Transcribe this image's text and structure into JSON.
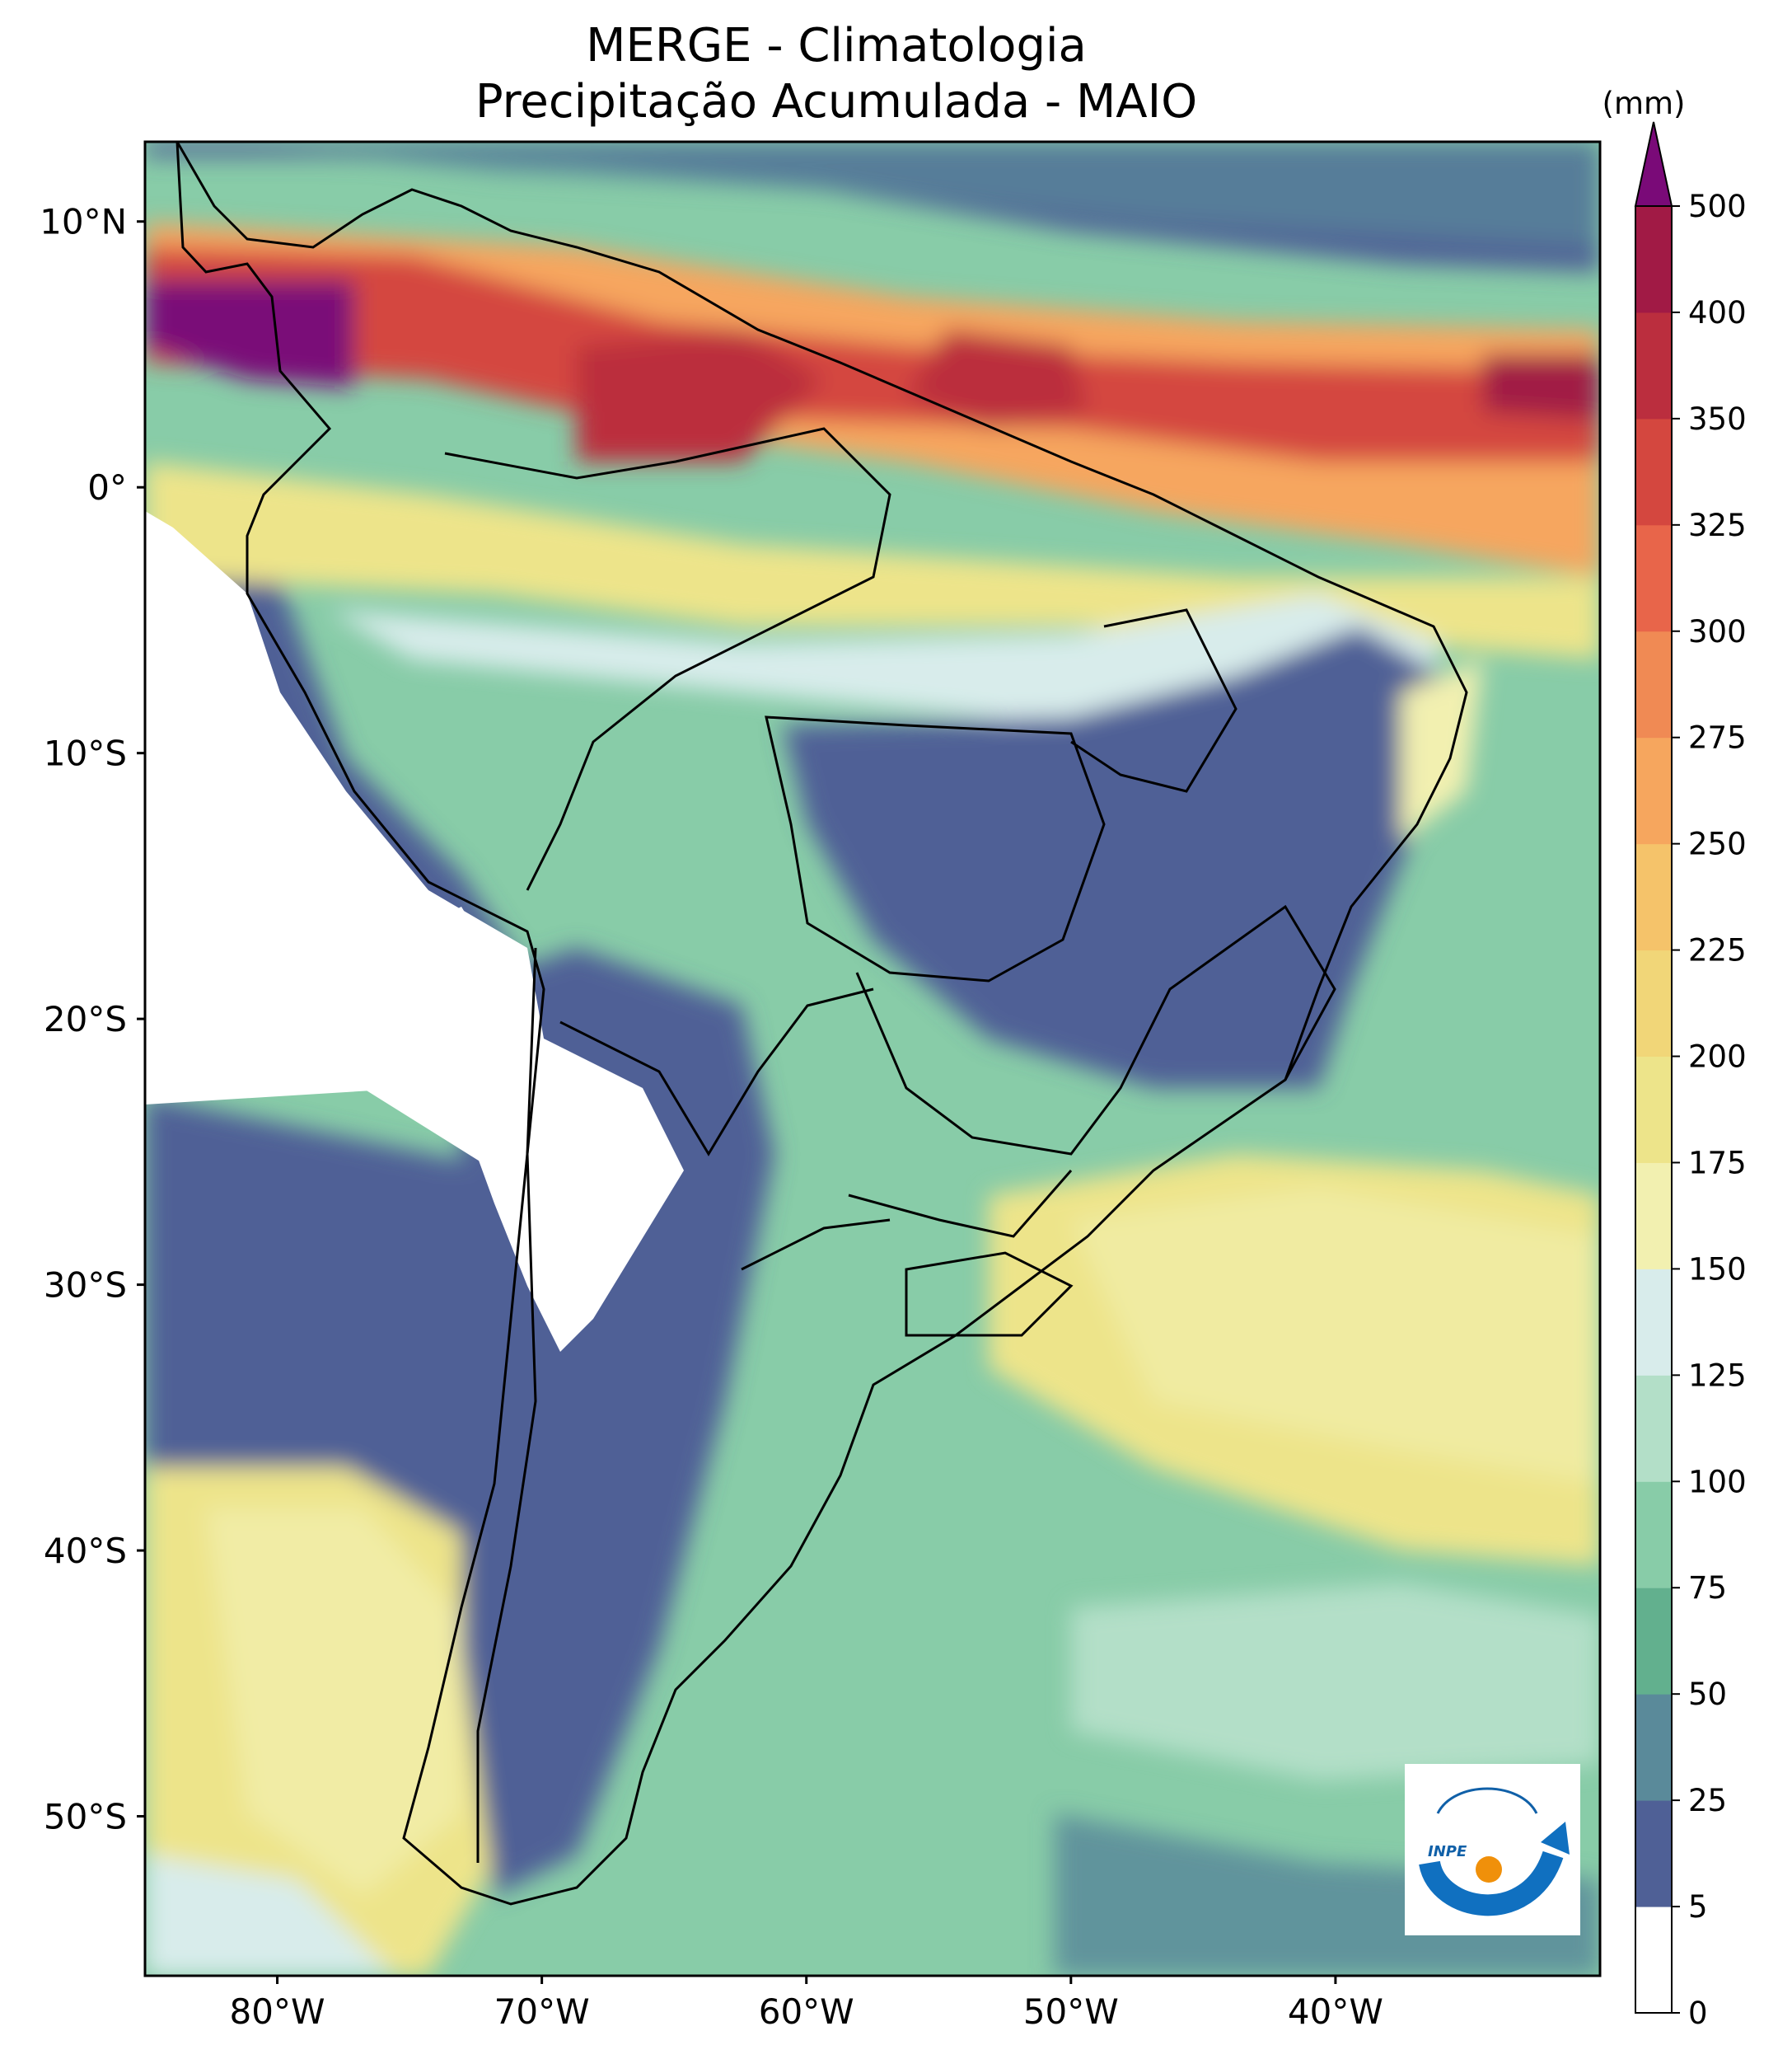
{
  "title_line1": "MERGE - Climatologia",
  "title_line2": "Precipitação Acumulada - MAIO",
  "lat_labels": [
    {
      "label": "10°N",
      "lat": 10
    },
    {
      "label": "0°",
      "lat": 0
    },
    {
      "label": "10°S",
      "lat": -10
    },
    {
      "label": "20°S",
      "lat": -20
    },
    {
      "label": "30°S",
      "lat": -30
    },
    {
      "label": "40°S",
      "lat": -40
    },
    {
      "label": "50°S",
      "lat": -50
    }
  ],
  "lon_labels": [
    {
      "label": "80°W",
      "lon": -80
    },
    {
      "label": "70°W",
      "lon": -70
    },
    {
      "label": "60°W",
      "lon": -60
    },
    {
      "label": "50°W",
      "lon": -50
    },
    {
      "label": "40°W",
      "lon": -40
    }
  ],
  "extent": {
    "lon_min": -85,
    "lon_max": -30,
    "lat_min": -56,
    "lat_max": 13
  },
  "colorbar": {
    "unit": "(mm)",
    "levels": [
      "0",
      "5",
      "25",
      "50",
      "75",
      "100",
      "125",
      "150",
      "175",
      "200",
      "225",
      "250",
      "275",
      "300",
      "325",
      "350",
      "400",
      "500"
    ],
    "colors": [
      "#ffffff",
      "#4f6096",
      "#5a8a9a",
      "#62b08e",
      "#88cca8",
      "#b3dfc8",
      "#d8eceb",
      "#f2f0b0",
      "#ede48a",
      "#f1d678",
      "#f5c36a",
      "#f6a65e",
      "#f08a54",
      "#e8654a",
      "#d4473f",
      "#bb2e3e",
      "#a11a45"
    ],
    "extend_color": "#7a0a78"
  },
  "logo": {
    "text": "INPE"
  }
}
